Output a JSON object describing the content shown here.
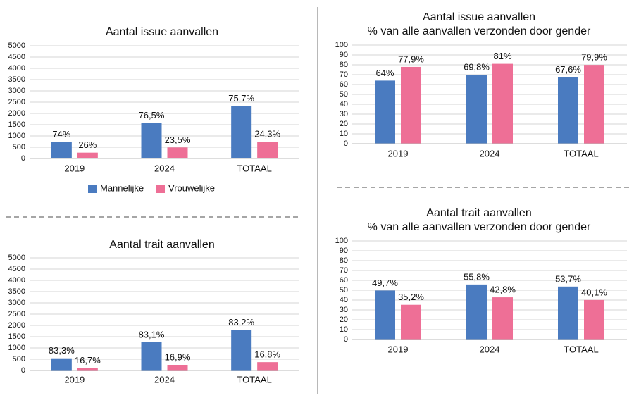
{
  "chart_data": [
    {
      "type": "bar",
      "title": "Aantal issue aanvallen",
      "categories": [
        "2019",
        "2024",
        "TOTAAL"
      ],
      "series": [
        {
          "name": "Mannelijke",
          "color": "#4a7bc0",
          "values": [
            740,
            1580,
            2320
          ],
          "share_labels": [
            "74%",
            "76,5%",
            "75,7%"
          ]
        },
        {
          "name": "Vrouwelijke",
          "color": "#ee6f96",
          "values": [
            260,
            490,
            750
          ],
          "share_labels": [
            "26%",
            "23,5%",
            "24,3%"
          ]
        }
      ],
      "ylim": [
        0,
        5000
      ],
      "yticks": [
        0,
        500,
        1000,
        1500,
        2000,
        2500,
        3000,
        3500,
        4000,
        4500,
        5000
      ],
      "grid": true,
      "legend": "bottom"
    },
    {
      "type": "bar",
      "title": "Aantal issue aanvallen",
      "subtitle": "% van alle aanvallen verzonden door gender",
      "categories": [
        "2019",
        "2024",
        "TOTAAL"
      ],
      "series": [
        {
          "name": "Mannelijke",
          "color": "#4a7bc0",
          "values": [
            64,
            69.8,
            67.6
          ],
          "value_labels": [
            "64%",
            "69,8%",
            "67,6%"
          ]
        },
        {
          "name": "Vrouwelijke",
          "color": "#ee6f96",
          "values": [
            77.9,
            81,
            79.9
          ],
          "value_labels": [
            "77,9%",
            "81%",
            "79,9%"
          ]
        }
      ],
      "ylim": [
        0,
        100
      ],
      "yticks": [
        0,
        10,
        20,
        30,
        40,
        50,
        60,
        70,
        80,
        90,
        100
      ],
      "grid": true
    },
    {
      "type": "bar",
      "title": "Aantal trait aanvallen",
      "categories": [
        "2019",
        "2024",
        "TOTAAL"
      ],
      "series": [
        {
          "name": "Mannelijke",
          "color": "#4a7bc0",
          "values": [
            540,
            1250,
            1800
          ],
          "share_labels": [
            "83,3%",
            "83,1%",
            "83,2%"
          ]
        },
        {
          "name": "Vrouwelijke",
          "color": "#ee6f96",
          "values": [
            110,
            250,
            370
          ],
          "share_labels": [
            "16,7%",
            "16,9%",
            "16,8%"
          ]
        }
      ],
      "ylim": [
        0,
        5000
      ],
      "yticks": [
        0,
        500,
        1000,
        1500,
        2000,
        2500,
        3000,
        3500,
        4000,
        4500,
        5000
      ],
      "grid": true
    },
    {
      "type": "bar",
      "title": "Aantal trait aanvallen",
      "subtitle": "% van alle aanvallen verzonden door gender",
      "categories": [
        "2019",
        "2024",
        "TOTAAL"
      ],
      "series": [
        {
          "name": "Mannelijke",
          "color": "#4a7bc0",
          "values": [
            49.7,
            55.8,
            53.7
          ],
          "value_labels": [
            "49,7%",
            "55,8%",
            "53,7%"
          ]
        },
        {
          "name": "Vrouwelijke",
          "color": "#ee6f96",
          "values": [
            35.2,
            42.8,
            40.1
          ],
          "value_labels": [
            "35,2%",
            "42,8%",
            "40,1%"
          ]
        }
      ],
      "ylim": [
        0,
        100
      ],
      "yticks": [
        0,
        10,
        20,
        30,
        40,
        50,
        60,
        70,
        80,
        90,
        100
      ],
      "grid": true
    }
  ]
}
